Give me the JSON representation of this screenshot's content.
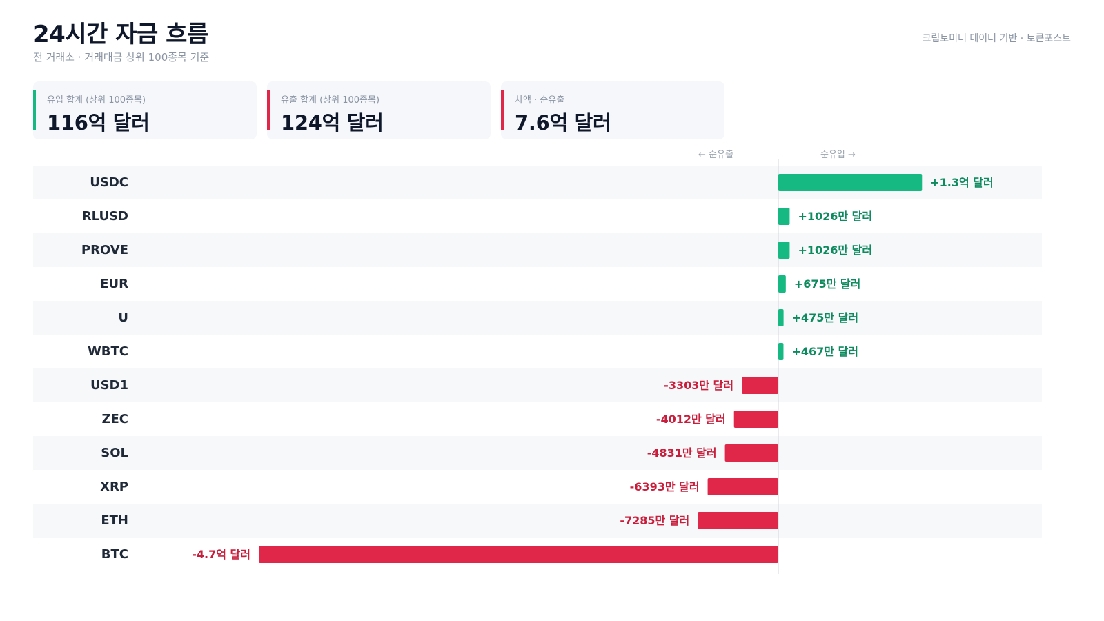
{
  "header": {
    "title": "24시간 자금 흐름",
    "subtitle": "전 거래소 · 거래대금 상위 100종목 기준",
    "source": "크립토미터 데이터 기반 · 토큰포스트"
  },
  "summary": {
    "inflow": {
      "label": "유입 합계 (상위 100종목)",
      "value": "116억 달러",
      "color": "#16b981"
    },
    "outflow": {
      "label": "유출 합계 (상위 100종목)",
      "value": "124억 달러",
      "color": "#e0274a"
    },
    "net": {
      "label": "차액 · 순유출",
      "value": "7.6억 달러",
      "color": "#e0274a"
    }
  },
  "axis": {
    "left_label": "← 순유출",
    "right_label": "순유입 →"
  },
  "colors": {
    "positive": "#16b981",
    "positive_text": "#0e8a5f",
    "negative": "#e0274a",
    "negative_text": "#c81e3c",
    "row_alt": "#f7f8fa"
  },
  "chart_data": {
    "type": "bar",
    "orientation": "horizontal",
    "unit": "USD",
    "categories": [
      "USDC",
      "RLUSD",
      "PROVE",
      "EUR",
      "U",
      "WBTC",
      "USD1",
      "ZEC",
      "SOL",
      "XRP",
      "ETH",
      "BTC"
    ],
    "values": [
      130000000,
      10260000,
      10260000,
      6750000,
      4750000,
      4670000,
      -33030000,
      -40120000,
      -48310000,
      -63930000,
      -72850000,
      -470000000
    ],
    "value_labels": [
      "+1.3억 달러",
      "+1026만 달러",
      "+1026만 달러",
      "+675만 달러",
      "+475만 달러",
      "+467만 달러",
      "-3303만 달러",
      "-4012만 달러",
      "-4831만 달러",
      "-6393만 달러",
      "-7285만 달러",
      "-4.7억 달러"
    ]
  }
}
